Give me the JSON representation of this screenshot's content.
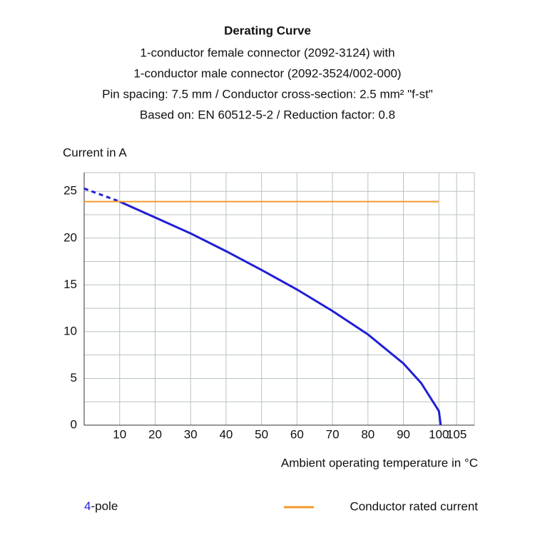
{
  "chart_data": {
    "type": "line",
    "title": "Derating Curve",
    "subtitle": [
      "1-conductor female connector (2092-3124) with",
      "1-conductor male connector  (2092-3524/002-000)",
      "Pin spacing: 7.5 mm / Conductor cross-section: 2.5 mm² \"f-st\"",
      "Based on: EN 60512-5-2 / Reduction factor: 0.8"
    ],
    "y_label": "Current in A",
    "x_label": "Ambient operating temperature in °C",
    "xlim": [
      0,
      110
    ],
    "ylim": [
      0,
      27
    ],
    "xticks": [
      10,
      20,
      30,
      40,
      50,
      60,
      70,
      80,
      90,
      100,
      105
    ],
    "yticks": [
      0,
      5,
      10,
      15,
      20,
      25
    ],
    "y_minor_ticks": [
      2.5,
      7.5,
      12.5,
      17.5,
      22.5
    ],
    "grid": true,
    "series": [
      {
        "name": "4-pole",
        "color": "#1f1fd6",
        "x": [
          10,
          20,
          30,
          40,
          50,
          60,
          70,
          80,
          90,
          95,
          100,
          100.5
        ],
        "values": [
          23.9,
          22.2,
          20.5,
          18.6,
          16.6,
          14.5,
          12.2,
          9.7,
          6.6,
          4.5,
          1.5,
          0
        ]
      },
      {
        "color": "#1f1fd6",
        "dash": true,
        "x": [
          0,
          10
        ],
        "values": [
          25.3,
          23.9
        ]
      },
      {
        "name": "Conductor rated current",
        "color": "#f39a2c",
        "x": [
          0,
          100
        ],
        "values": [
          23.9,
          23.9
        ]
      }
    ]
  }
}
